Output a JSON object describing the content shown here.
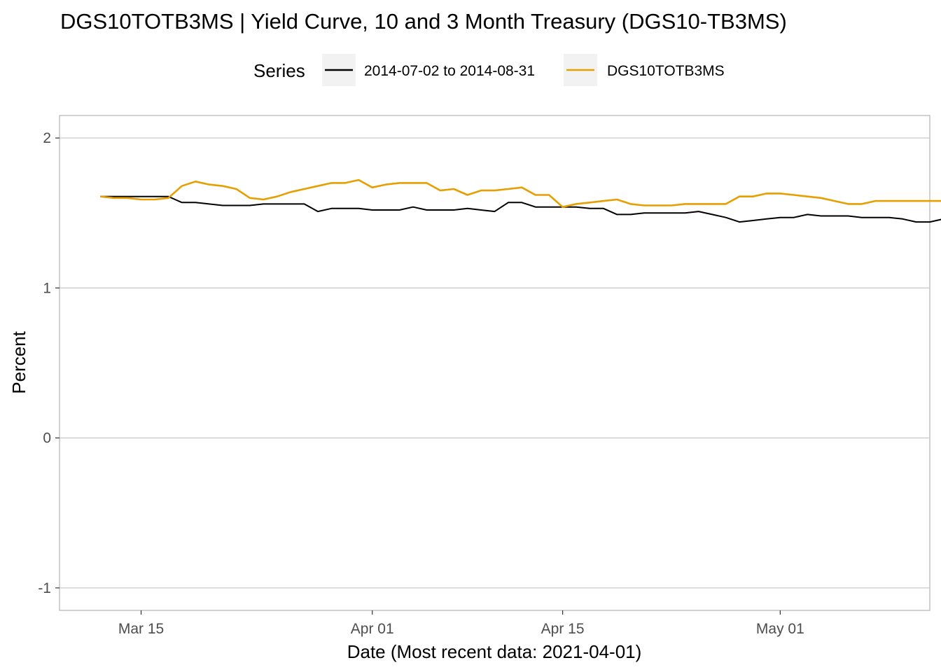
{
  "title": "DGS10TOTB3MS | Yield Curve, 10 and 3 Month Treasury (DGS10-TB3MS)",
  "legend": {
    "title": "Series",
    "entries": [
      {
        "label": "2014-07-02 to 2014-08-31",
        "color": "#000000"
      },
      {
        "label": "DGS10TOTB3MS",
        "color": "#E69F00"
      }
    ]
  },
  "chart_data": {
    "type": "line",
    "title": "DGS10TOTB3MS | Yield Curve, 10 and 3 Month Treasury (DGS10-TB3MS)",
    "xlabel": "Date (Most recent data: 2021-04-01)",
    "ylabel": "Percent",
    "x_ticks": [
      {
        "date": "2021-03-15",
        "label": "Mar 15"
      },
      {
        "date": "2021-04-01",
        "label": "Apr 01"
      },
      {
        "date": "2021-04-15",
        "label": "Apr 15"
      },
      {
        "date": "2021-05-01",
        "label": "May 01"
      }
    ],
    "y_ticks": [
      -1,
      0,
      1,
      2
    ],
    "xlim": [
      "2021-03-09",
      "2021-05-12"
    ],
    "ylim": [
      -1.15,
      2.15
    ],
    "grid": true,
    "legend_position": "top",
    "series": [
      {
        "name": "2014-07-02 to 2014-08-31",
        "color": "#000000",
        "points": [
          [
            "2021-03-12",
            1.61
          ],
          [
            "2021-03-13",
            1.61
          ],
          [
            "2021-03-14",
            1.61
          ],
          [
            "2021-03-15",
            1.61
          ],
          [
            "2021-03-16",
            1.61
          ],
          [
            "2021-03-17",
            1.61
          ],
          [
            "2021-03-18",
            1.57
          ],
          [
            "2021-03-19",
            1.57
          ],
          [
            "2021-03-20",
            1.56
          ],
          [
            "2021-03-21",
            1.55
          ],
          [
            "2021-03-22",
            1.55
          ],
          [
            "2021-03-23",
            1.55
          ],
          [
            "2021-03-24",
            1.56
          ],
          [
            "2021-03-25",
            1.56
          ],
          [
            "2021-03-26",
            1.56
          ],
          [
            "2021-03-27",
            1.56
          ],
          [
            "2021-03-28",
            1.51
          ],
          [
            "2021-03-29",
            1.53
          ],
          [
            "2021-03-30",
            1.53
          ],
          [
            "2021-03-31",
            1.53
          ],
          [
            "2021-04-01",
            1.52
          ],
          [
            "2021-04-02",
            1.52
          ],
          [
            "2021-04-03",
            1.52
          ],
          [
            "2021-04-04",
            1.54
          ],
          [
            "2021-04-05",
            1.52
          ],
          [
            "2021-04-06",
            1.52
          ],
          [
            "2021-04-07",
            1.52
          ],
          [
            "2021-04-08",
            1.53
          ],
          [
            "2021-04-09",
            1.52
          ],
          [
            "2021-04-10",
            1.51
          ],
          [
            "2021-04-11",
            1.57
          ],
          [
            "2021-04-12",
            1.57
          ],
          [
            "2021-04-13",
            1.54
          ],
          [
            "2021-04-14",
            1.54
          ],
          [
            "2021-04-15",
            1.54
          ],
          [
            "2021-04-16",
            1.54
          ],
          [
            "2021-04-17",
            1.53
          ],
          [
            "2021-04-18",
            1.53
          ],
          [
            "2021-04-19",
            1.49
          ],
          [
            "2021-04-20",
            1.49
          ],
          [
            "2021-04-21",
            1.5
          ],
          [
            "2021-04-22",
            1.5
          ],
          [
            "2021-04-23",
            1.5
          ],
          [
            "2021-04-24",
            1.5
          ],
          [
            "2021-04-25",
            1.51
          ],
          [
            "2021-04-26",
            1.49
          ],
          [
            "2021-04-27",
            1.47
          ],
          [
            "2021-04-28",
            1.44
          ],
          [
            "2021-04-29",
            1.45
          ],
          [
            "2021-04-30",
            1.46
          ],
          [
            "2021-05-01",
            1.47
          ],
          [
            "2021-05-02",
            1.47
          ],
          [
            "2021-05-03",
            1.49
          ],
          [
            "2021-05-04",
            1.48
          ],
          [
            "2021-05-05",
            1.48
          ],
          [
            "2021-05-06",
            1.48
          ],
          [
            "2021-05-07",
            1.47
          ],
          [
            "2021-05-08",
            1.47
          ],
          [
            "2021-05-09",
            1.47
          ],
          [
            "2021-05-10",
            1.46
          ],
          [
            "2021-05-11",
            1.44
          ],
          [
            "2021-05-12",
            1.44
          ],
          [
            "2021-05-13",
            1.46
          ],
          [
            "2021-05-14",
            1.47
          ]
        ]
      },
      {
        "name": "DGS10TOTB3MS",
        "color": "#E69F00",
        "points": [
          [
            "2021-03-12",
            1.61
          ],
          [
            "2021-03-13",
            1.6
          ],
          [
            "2021-03-14",
            1.6
          ],
          [
            "2021-03-15",
            1.59
          ],
          [
            "2021-03-16",
            1.59
          ],
          [
            "2021-03-17",
            1.6
          ],
          [
            "2021-03-18",
            1.68
          ],
          [
            "2021-03-19",
            1.71
          ],
          [
            "2021-03-20",
            1.69
          ],
          [
            "2021-03-21",
            1.68
          ],
          [
            "2021-03-22",
            1.66
          ],
          [
            "2021-03-23",
            1.6
          ],
          [
            "2021-03-24",
            1.59
          ],
          [
            "2021-03-25",
            1.61
          ],
          [
            "2021-03-26",
            1.64
          ],
          [
            "2021-03-27",
            1.66
          ],
          [
            "2021-03-28",
            1.68
          ],
          [
            "2021-03-29",
            1.7
          ],
          [
            "2021-03-30",
            1.7
          ],
          [
            "2021-03-31",
            1.72
          ],
          [
            "2021-04-01",
            1.67
          ],
          [
            "2021-04-02",
            1.69
          ],
          [
            "2021-04-03",
            1.7
          ],
          [
            "2021-04-04",
            1.7
          ],
          [
            "2021-04-05",
            1.7
          ],
          [
            "2021-04-06",
            1.65
          ],
          [
            "2021-04-07",
            1.66
          ],
          [
            "2021-04-08",
            1.62
          ],
          [
            "2021-04-09",
            1.65
          ],
          [
            "2021-04-10",
            1.65
          ],
          [
            "2021-04-11",
            1.66
          ],
          [
            "2021-04-12",
            1.67
          ],
          [
            "2021-04-13",
            1.62
          ],
          [
            "2021-04-14",
            1.62
          ],
          [
            "2021-04-15",
            1.54
          ],
          [
            "2021-04-16",
            1.56
          ],
          [
            "2021-04-17",
            1.57
          ],
          [
            "2021-04-18",
            1.58
          ],
          [
            "2021-04-19",
            1.59
          ],
          [
            "2021-04-20",
            1.56
          ],
          [
            "2021-04-21",
            1.55
          ],
          [
            "2021-04-22",
            1.55
          ],
          [
            "2021-04-23",
            1.55
          ],
          [
            "2021-04-24",
            1.56
          ],
          [
            "2021-04-25",
            1.56
          ],
          [
            "2021-04-26",
            1.56
          ],
          [
            "2021-04-27",
            1.56
          ],
          [
            "2021-04-28",
            1.61
          ],
          [
            "2021-04-29",
            1.61
          ],
          [
            "2021-04-30",
            1.63
          ],
          [
            "2021-05-01",
            1.63
          ],
          [
            "2021-05-02",
            1.62
          ],
          [
            "2021-05-03",
            1.61
          ],
          [
            "2021-05-04",
            1.6
          ],
          [
            "2021-05-05",
            1.58
          ],
          [
            "2021-05-06",
            1.56
          ],
          [
            "2021-05-07",
            1.56
          ],
          [
            "2021-05-08",
            1.58
          ],
          [
            "2021-05-09",
            1.58
          ],
          [
            "2021-05-10",
            1.58
          ],
          [
            "2021-05-11",
            1.58
          ],
          [
            "2021-05-12",
            1.58
          ],
          [
            "2021-05-13",
            1.58
          ],
          [
            "2021-05-14",
            1.58
          ]
        ]
      }
    ]
  }
}
